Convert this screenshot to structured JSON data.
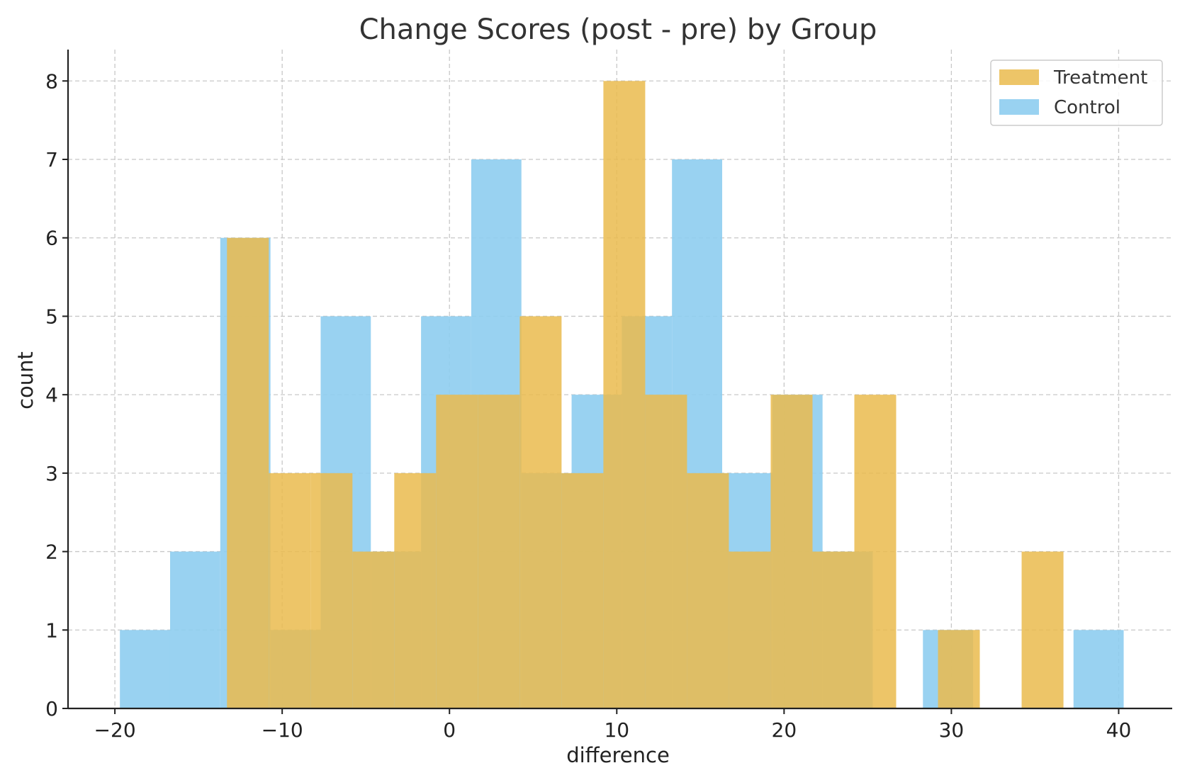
{
  "chart_data": {
    "type": "bar",
    "subtype": "histogram-overlay",
    "title": "Change Scores (post - pre) by Group",
    "xlabel": "difference",
    "ylabel": "count",
    "xlim": [
      -22.8,
      43.2
    ],
    "ylim": [
      0,
      8.4
    ],
    "xticks": [
      -20,
      -10,
      0,
      10,
      20,
      30,
      40
    ],
    "xtick_labels": [
      "−20",
      "−10",
      "0",
      "10",
      "20",
      "30",
      "40"
    ],
    "yticks": [
      0,
      1,
      2,
      3,
      4,
      5,
      6,
      7,
      8
    ],
    "ytick_labels": [
      "0",
      "1",
      "2",
      "3",
      "4",
      "5",
      "6",
      "7",
      "8"
    ],
    "grid": true,
    "legend_position": "top-right",
    "series": [
      {
        "name": "Control",
        "color": "#8ecdef",
        "opacity": 0.9,
        "bin_edges": [
          -19.7,
          -16.7,
          -13.7,
          -10.7,
          -7.7,
          -4.7,
          -1.7,
          1.3,
          4.3,
          7.3,
          10.3,
          13.3,
          16.3,
          19.3,
          22.3,
          25.3,
          28.3,
          31.3,
          34.3,
          37.3,
          40.3
        ],
        "counts": [
          1,
          2,
          6,
          1,
          5,
          2,
          5,
          7,
          3,
          4,
          5,
          7,
          3,
          4,
          2,
          0,
          1,
          0,
          0,
          1
        ]
      },
      {
        "name": "Treatment",
        "color": "#eabb4e",
        "opacity": 0.85,
        "bin_edges": [
          -13.3,
          -10.8,
          -8.3,
          -5.8,
          -3.3,
          -0.8,
          1.7,
          4.2,
          6.7,
          9.2,
          11.7,
          14.2,
          16.7,
          19.2,
          21.7,
          24.2,
          26.7,
          29.2,
          31.7,
          34.2,
          36.7
        ],
        "counts": [
          6,
          3,
          3,
          2,
          3,
          4,
          4,
          5,
          3,
          8,
          4,
          3,
          2,
          4,
          2,
          4,
          0,
          1,
          0,
          2
        ]
      }
    ],
    "legend_order": [
      "Treatment",
      "Control"
    ]
  }
}
